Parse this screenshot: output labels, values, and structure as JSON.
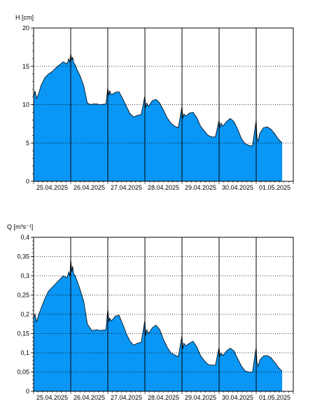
{
  "colors": {
    "fill": "#0a96f5",
    "line": "#000000",
    "grid": "#000000",
    "background": "#ffffff"
  },
  "chart_data": [
    {
      "type": "area",
      "ylabel": "H [cm]",
      "ylim": [
        0,
        20
      ],
      "yticks": [
        0,
        5,
        10,
        15,
        20
      ],
      "ytick_labels": [
        "0",
        "5",
        "10",
        "15",
        "20"
      ],
      "xlim": [
        0,
        7
      ],
      "xtick_labels": [
        "25.04.2025",
        "26.04.2025",
        "27.04.2025",
        "28.04.2025",
        "29.04.2025",
        "30.04.2025",
        "01.05.2025"
      ],
      "day_boundaries": [
        1,
        2,
        3,
        4,
        5,
        6
      ],
      "grid": "horizontal dotted",
      "x": [
        0.0,
        0.04,
        0.08,
        0.14,
        0.2,
        0.3,
        0.4,
        0.5,
        0.6,
        0.7,
        0.8,
        0.9,
        0.95,
        0.98,
        1.0,
        1.03,
        1.05,
        1.08,
        1.12,
        1.18,
        1.25,
        1.35,
        1.45,
        1.55,
        1.6,
        1.7,
        1.8,
        1.95,
        2.0,
        2.03,
        2.05,
        2.1,
        2.2,
        2.3,
        2.4,
        2.5,
        2.6,
        2.7,
        2.8,
        2.9,
        3.0,
        3.02,
        3.05,
        3.1,
        3.2,
        3.3,
        3.4,
        3.5,
        3.6,
        3.7,
        3.8,
        3.9,
        4.0,
        4.02,
        4.05,
        4.1,
        4.2,
        4.3,
        4.4,
        4.5,
        4.6,
        4.7,
        4.8,
        4.9,
        5.0,
        5.02,
        5.05,
        5.1,
        5.2,
        5.3,
        5.4,
        5.5,
        5.6,
        5.7,
        5.8,
        5.9,
        6.0,
        6.02,
        6.05,
        6.1,
        6.2,
        6.3,
        6.4,
        6.5,
        6.6,
        6.7
      ],
      "y": [
        11.0,
        11.8,
        10.8,
        11.5,
        12.5,
        13.5,
        14.0,
        14.3,
        14.8,
        15.2,
        15.6,
        15.3,
        16.0,
        15.5,
        16.7,
        15.8,
        16.2,
        15.5,
        15.2,
        14.5,
        13.8,
        12.5,
        10.2,
        10.0,
        10.1,
        10.1,
        10.0,
        10.1,
        12.2,
        11.2,
        11.8,
        11.3,
        11.6,
        11.7,
        10.8,
        9.8,
        8.8,
        8.4,
        8.6,
        8.7,
        11.2,
        9.6,
        10.2,
        9.8,
        10.5,
        10.7,
        10.2,
        9.3,
        8.3,
        7.6,
        7.2,
        7.0,
        9.8,
        8.2,
        8.8,
        8.5,
        8.9,
        9.0,
        8.3,
        7.2,
        6.6,
        6.0,
        5.8,
        5.8,
        8.0,
        7.0,
        7.6,
        7.2,
        7.8,
        8.2,
        7.8,
        6.8,
        5.6,
        4.9,
        4.7,
        4.6,
        8.0,
        5.8,
        5.2,
        6.3,
        7.0,
        7.1,
        6.8,
        6.2,
        5.5,
        5.0
      ]
    },
    {
      "type": "area",
      "ylabel": "Q [m³s⁻¹]",
      "ylim": [
        0,
        0.4
      ],
      "yticks": [
        0,
        0.05,
        0.1,
        0.15,
        0.2,
        0.25,
        0.3,
        0.35,
        0.4
      ],
      "ytick_labels": [
        "0",
        "0,05",
        "0,1",
        "0,15",
        "0,2",
        "0,25",
        "0,3",
        "0,35",
        "0,4"
      ],
      "xlim": [
        0,
        7
      ],
      "xtick_labels": [
        "25.04.2025",
        "26.04.2025",
        "27.04.2025",
        "28.04.2025",
        "29.04.2025",
        "30.04.2025",
        "01.05.2025"
      ],
      "day_boundaries": [
        1,
        2,
        3,
        4,
        5,
        6
      ],
      "grid": "horizontal dotted",
      "x": [
        0.0,
        0.04,
        0.08,
        0.14,
        0.2,
        0.3,
        0.4,
        0.5,
        0.6,
        0.7,
        0.8,
        0.9,
        0.95,
        0.98,
        1.0,
        1.03,
        1.05,
        1.08,
        1.12,
        1.18,
        1.25,
        1.35,
        1.45,
        1.55,
        1.6,
        1.7,
        1.8,
        1.95,
        2.0,
        2.03,
        2.05,
        2.1,
        2.2,
        2.3,
        2.4,
        2.5,
        2.6,
        2.7,
        2.8,
        2.9,
        3.0,
        3.02,
        3.05,
        3.1,
        3.2,
        3.3,
        3.4,
        3.5,
        3.6,
        3.7,
        3.8,
        3.9,
        4.0,
        4.02,
        4.05,
        4.1,
        4.2,
        4.3,
        4.4,
        4.5,
        4.6,
        4.7,
        4.8,
        4.9,
        5.0,
        5.02,
        5.05,
        5.1,
        5.2,
        5.3,
        5.4,
        5.5,
        5.6,
        5.7,
        5.8,
        5.9,
        6.0,
        6.02,
        6.05,
        6.1,
        6.2,
        6.3,
        6.4,
        6.5,
        6.6,
        6.7
      ],
      "y": [
        0.19,
        0.2,
        0.18,
        0.2,
        0.215,
        0.24,
        0.26,
        0.27,
        0.28,
        0.29,
        0.3,
        0.295,
        0.31,
        0.3,
        0.345,
        0.31,
        0.325,
        0.305,
        0.3,
        0.285,
        0.265,
        0.235,
        0.175,
        0.16,
        0.158,
        0.16,
        0.158,
        0.16,
        0.215,
        0.18,
        0.19,
        0.183,
        0.195,
        0.198,
        0.175,
        0.15,
        0.13,
        0.12,
        0.125,
        0.127,
        0.185,
        0.145,
        0.16,
        0.15,
        0.165,
        0.172,
        0.16,
        0.135,
        0.115,
        0.1,
        0.095,
        0.09,
        0.145,
        0.11,
        0.125,
        0.118,
        0.125,
        0.13,
        0.115,
        0.093,
        0.08,
        0.07,
        0.068,
        0.068,
        0.115,
        0.09,
        0.1,
        0.093,
        0.105,
        0.112,
        0.105,
        0.085,
        0.066,
        0.053,
        0.05,
        0.05,
        0.115,
        0.075,
        0.065,
        0.082,
        0.092,
        0.093,
        0.087,
        0.075,
        0.062,
        0.052
      ]
    }
  ]
}
